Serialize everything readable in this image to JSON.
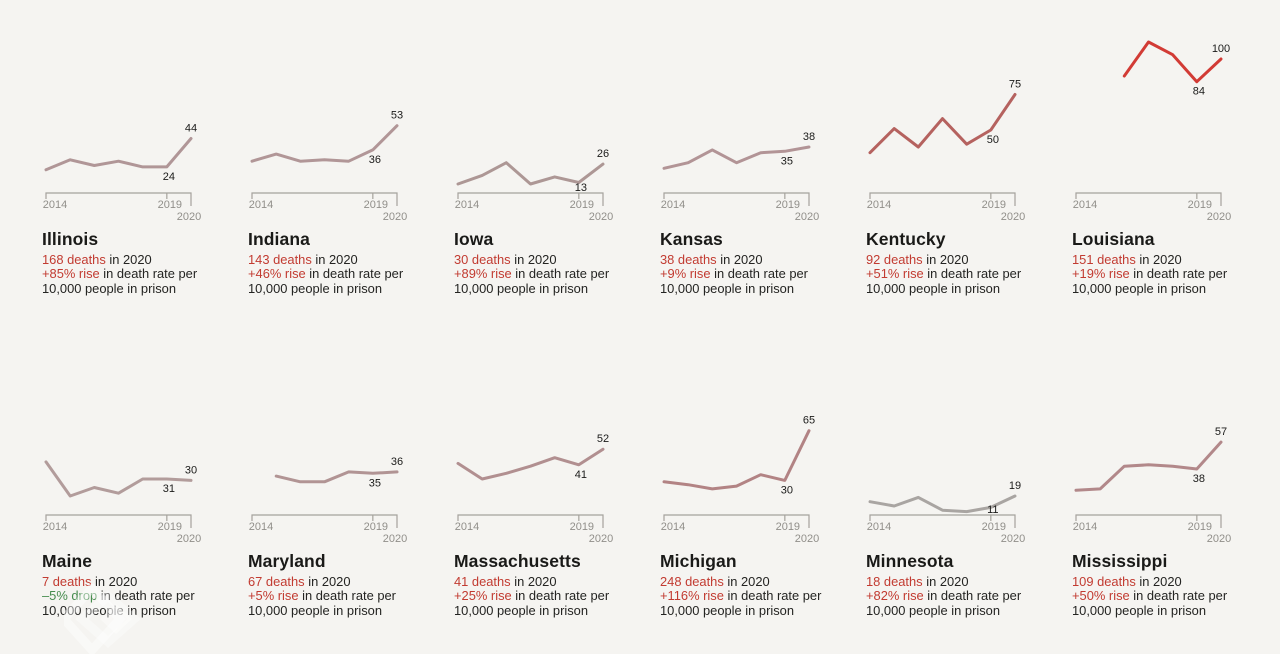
{
  "theme": {
    "background": "#f5f4f1",
    "text": "#242422",
    "accent_red": "#c23b31",
    "accent_green": "#468c4e",
    "axis": "#a5a29d",
    "axis_label": "#918f8a",
    "value_label": "#1b1b1a"
  },
  "chart_data": {
    "type": "line",
    "x_years": [
      2014,
      2015,
      2016,
      2017,
      2018,
      2019,
      2020
    ],
    "x_tick_labels": [
      "2014",
      "2019",
      "2020"
    ],
    "y_note": "death rate per 10,000 people in prison",
    "shared_y_scale": true,
    "grid": false,
    "legend": "none",
    "series": [
      {
        "state": "Illinois",
        "start_year": 2014,
        "values": [
          22,
          29,
          25,
          28,
          24,
          24,
          44
        ],
        "labeled_points": {
          "2019": 24,
          "2020": 44
        },
        "line_color": "#b09697",
        "deaths_text": "168 deaths",
        "deaths_rest": " in 2020",
        "change_text": "+85% rise",
        "change_direction": "rise",
        "change_rest": " in death rate per",
        "line3": "10,000 people in prison"
      },
      {
        "state": "Indiana",
        "start_year": 2014,
        "values": [
          28,
          33,
          28,
          29,
          28,
          36,
          53
        ],
        "labeled_points": {
          "2019": 36,
          "2020": 53
        },
        "line_color": "#b19697",
        "deaths_text": "143 deaths",
        "deaths_rest": " in 2020",
        "change_text": "+46% rise",
        "change_direction": "rise",
        "change_rest": " in death rate per",
        "line3": "10,000 people in prison"
      },
      {
        "state": "Iowa",
        "start_year": 2014,
        "values": [
          12,
          18,
          27,
          12,
          17,
          13,
          26
        ],
        "labeled_points": {
          "2019": 13,
          "2020": 26
        },
        "line_color": "#ad9795",
        "deaths_text": "30 deaths",
        "deaths_rest": " in 2020",
        "change_text": "+89% rise",
        "change_direction": "rise",
        "change_rest": " in death rate per",
        "line3": "10,000 people in prison"
      },
      {
        "state": "Kansas",
        "start_year": 2014,
        "values": [
          23,
          27,
          36,
          27,
          34,
          35,
          38
        ],
        "labeled_points": {
          "2019": 35,
          "2020": 38
        },
        "line_color": "#b29496",
        "deaths_text": "38 deaths",
        "deaths_rest": " in 2020",
        "change_text": "+9% rise",
        "change_direction": "rise",
        "change_rest": " in death rate per",
        "line3": "10,000 people in prison"
      },
      {
        "state": "Kentucky",
        "start_year": 2014,
        "values": [
          34,
          51,
          38,
          58,
          40,
          50,
          75
        ],
        "labeled_points": {
          "2019": 50,
          "2020": 75
        },
        "line_color": "#b5625f",
        "deaths_text": "92 deaths",
        "deaths_rest": " in 2020",
        "change_text": "+51% rise",
        "change_direction": "rise",
        "change_rest": " in death rate per",
        "line3": "10,000 people in prison"
      },
      {
        "state": "Louisiana",
        "start_year": 2016,
        "values": [
          88,
          112,
          103,
          84,
          100
        ],
        "labeled_points": {
          "2019": 84,
          "2020": 100
        },
        "line_color": "#d23b35",
        "deaths_text": "151 deaths",
        "deaths_rest": " in 2020",
        "change_text": "+19% rise",
        "change_direction": "rise",
        "change_rest": " in death rate per",
        "line3": "10,000 people in prison"
      },
      {
        "state": "Maine",
        "start_year": 2014,
        "values": [
          43,
          19,
          25,
          21,
          31,
          31,
          30
        ],
        "labeled_points": {
          "2019": 31,
          "2020": 30
        },
        "line_color": "#b29c9b",
        "deaths_text": "7 deaths",
        "deaths_rest": " in 2020",
        "change_text": "–5% drop",
        "change_direction": "drop",
        "change_rest": " in death rate per",
        "line3": "10,000 people in prison"
      },
      {
        "state": "Maryland",
        "start_year": 2015,
        "values": [
          33,
          29,
          29,
          36,
          35,
          36
        ],
        "labeled_points": {
          "2019": 35,
          "2020": 36
        },
        "line_color": "#b19494",
        "deaths_text": "67 deaths",
        "deaths_rest": " in 2020",
        "change_text": "+5% rise",
        "change_direction": "rise",
        "change_rest": " in death rate per",
        "line3": "10,000 people in prison"
      },
      {
        "state": "Massachusetts",
        "start_year": 2014,
        "values": [
          42,
          31,
          35,
          40,
          46,
          41,
          52
        ],
        "labeled_points": {
          "2019": 41,
          "2020": 52
        },
        "line_color": "#b18f90",
        "deaths_text": "41 deaths",
        "deaths_rest": " in 2020",
        "change_text": "+25% rise",
        "change_direction": "rise",
        "change_rest": " in death rate per",
        "line3": "10,000 people in prison"
      },
      {
        "state": "Michigan",
        "start_year": 2014,
        "values": [
          29,
          27,
          24,
          26,
          34,
          30,
          65
        ],
        "labeled_points": {
          "2019": 30,
          "2020": 65
        },
        "line_color": "#b28384",
        "deaths_text": "248 deaths",
        "deaths_rest": " in 2020",
        "change_text": "+116% rise",
        "change_direction": "rise",
        "change_rest": " in death rate per",
        "line3": "10,000 people in prison"
      },
      {
        "state": "Minnesota",
        "start_year": 2014,
        "values": [
          15,
          12,
          18,
          9,
          8,
          11,
          19
        ],
        "labeled_points": {
          "2019": 11,
          "2020": 19
        },
        "line_color": "#a9a5a2",
        "deaths_text": "18 deaths",
        "deaths_rest": " in 2020",
        "change_text": "+82% rise",
        "change_direction": "rise",
        "change_rest": " in death rate per",
        "line3": "10,000 people in prison"
      },
      {
        "state": "Mississippi",
        "start_year": 2014,
        "values": [
          23,
          24,
          40,
          41,
          40,
          38,
          57
        ],
        "labeled_points": {
          "2019": 38,
          "2020": 57
        },
        "line_color": "#b2888a",
        "deaths_text": "109 deaths",
        "deaths_rest": " in 2020",
        "change_text": "+50% rise",
        "change_direction": "rise",
        "change_rest": " in death rate per",
        "line3": "10,000 people in prison"
      }
    ]
  }
}
